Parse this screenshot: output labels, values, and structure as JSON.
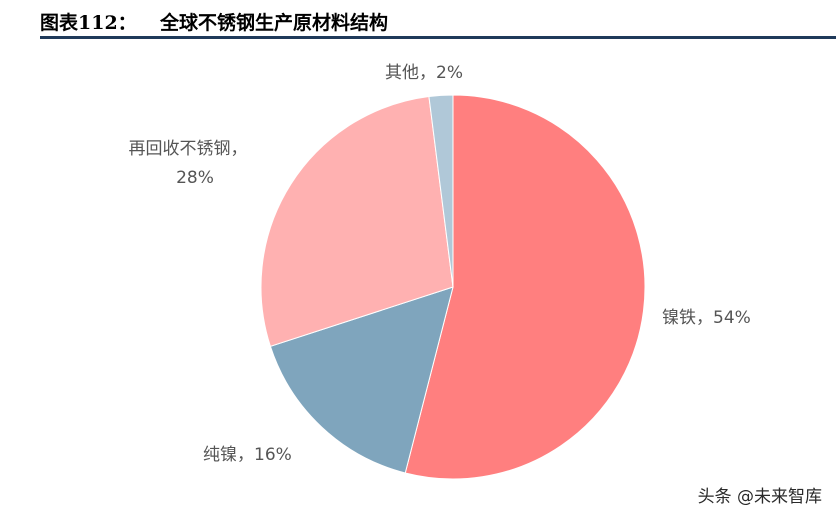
{
  "header": {
    "figure_label": "图表112：",
    "title": "全球不锈钢生产原材料结构"
  },
  "chart_data": {
    "type": "pie",
    "title": "全球不锈钢生产原材料结构",
    "slices": [
      {
        "name": "镍铁",
        "value": 54,
        "label_line1": "镍铁，54%",
        "label_line2": "",
        "color": "#ff7f7f"
      },
      {
        "name": "纯镍",
        "value": 16,
        "label_line1": "纯镍，16%",
        "label_line2": "",
        "color": "#7fa5bd"
      },
      {
        "name": "再回收不锈钢",
        "value": 28,
        "label_line1": "再回收不锈钢，",
        "label_line2": "28%",
        "color": "#ffb1b1"
      },
      {
        "name": "其他",
        "value": 2,
        "label_line1": "其他，2%",
        "label_line2": "",
        "color": "#b0c8d8"
      }
    ],
    "start_position": "top, clockwise",
    "legend": "none"
  },
  "watermark": "头条 @未来智库"
}
